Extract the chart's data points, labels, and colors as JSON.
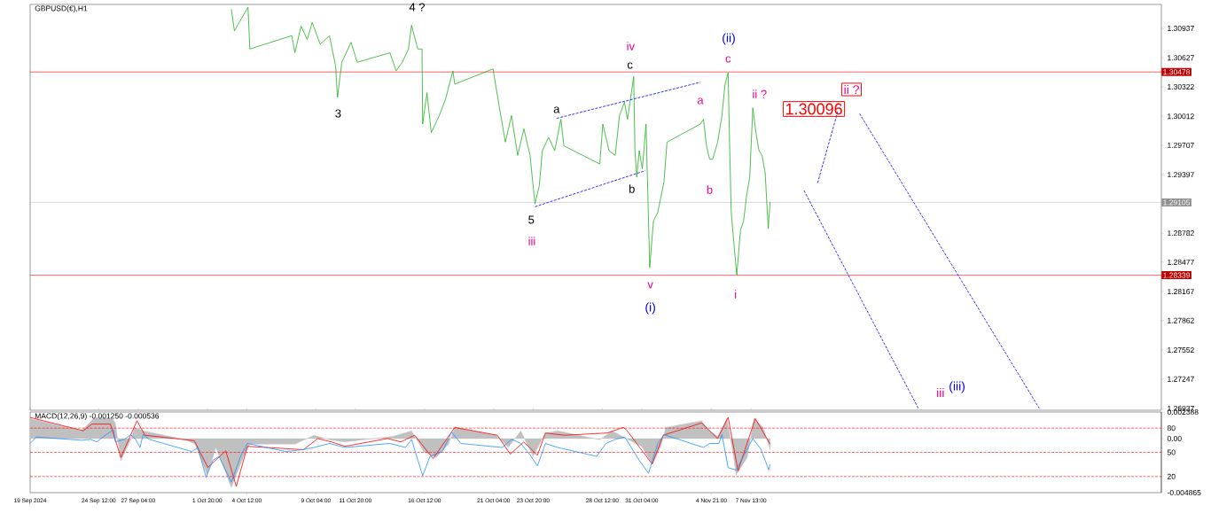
{
  "chart_data": [
    {
      "type": "line",
      "title": "GBPUSD(€),H1",
      "xlim": [
        "2024-09-19T21:00",
        "2024-12-05T06:00"
      ],
      "ylim": [
        1.26918,
        1.31189
      ],
      "xticks": [
        {
          "value": "2024-09-19T21:00",
          "label": null
        },
        {
          "value": "2024-09-24T12:00",
          "label": null
        },
        {
          "value": "2024-09-27T04:00",
          "label": null
        },
        {
          "value": "2024-10-01T20:00",
          "label": null
        },
        {
          "value": "2024-10-04T12:00",
          "label": null
        },
        {
          "value": "2024-10-09T04:00",
          "label": null
        },
        {
          "value": "2024-10-11T20:00",
          "label": null
        },
        {
          "value": "2024-10-16T12:00",
          "label": null
        },
        {
          "value": "2024-10-21T04:00",
          "label": null
        },
        {
          "value": "2024-10-23T20:00",
          "label": null
        },
        {
          "value": "2024-10-28T12:00",
          "label": null
        },
        {
          "value": "2024-10-31T04:00",
          "label": null
        },
        {
          "value": "2024-11-04T21:00",
          "label": null
        },
        {
          "value": "2024-11-07T13:00",
          "label": null
        }
      ],
      "yticks": [
        1.30937,
        1.30627,
        1.30322,
        1.30012,
        1.29707,
        1.29397,
        1.28782,
        1.28477,
        1.28167,
        1.27862,
        1.27552,
        1.27247,
        1.26937
      ],
      "tick_labels": "y",
      "series": [
        {
          "color": "#22b022",
          "line_style": "solid",
          "x": [
            "2024-10-03T11:00",
            "2024-10-03T16:00",
            "2024-10-04T14:00",
            "2024-10-04T17:00",
            "2024-10-07T13:00",
            "2024-10-07T18:00",
            "2024-10-08T04:00",
            "2024-10-08T14:00",
            "2024-10-08T22:00",
            "2024-10-09T11:00",
            "2024-10-10T02:00",
            "2024-10-10T12:00",
            "2024-10-10T15:00",
            "2024-10-10T22:00",
            "2024-10-11T13:00",
            "2024-10-11T23:00",
            "2024-10-14T04:00",
            "2024-10-14T14:00",
            "2024-10-15T00:00",
            "2024-10-15T10:00",
            "2024-10-15T15:00",
            "2024-10-16T01:00",
            "2024-10-16T08:00",
            "2024-10-16T09:00",
            "2024-10-16T16:00",
            "2024-10-16T23:00",
            "2024-10-17T12:00",
            "2024-10-17T22:00",
            "2024-10-18T10:00",
            "2024-10-18T13:00",
            "2024-10-21T03:00",
            "2024-10-21T13:00",
            "2024-10-21T23:00",
            "2024-10-22T09:00",
            "2024-10-22T19:00",
            "2024-10-23T05:00",
            "2024-10-23T15:00",
            "2024-10-23T23:00",
            "2024-10-24T06:00",
            "2024-10-24T11:00",
            "2024-10-24T21:00",
            "2024-10-25T07:00",
            "2024-10-25T17:00",
            "2024-10-25T22:00",
            "2024-10-28T08:00",
            "2024-10-28T13:00",
            "2024-10-28T23:00",
            "2024-10-29T09:00",
            "2024-10-29T16:00",
            "2024-10-30T00:00",
            "2024-10-30T05:00",
            "2024-10-30T15:00",
            "2024-10-30T17:00",
            "2024-10-30T20:00",
            "2024-10-31T00:00",
            "2024-10-31T05:00",
            "2024-10-31T11:00",
            "2024-10-31T15:00",
            "2024-10-31T17:00",
            "2024-10-31T23:00",
            "2024-11-01T06:00",
            "2024-11-01T16:00",
            "2024-11-01T21:00",
            "2024-11-04T03:00",
            "2024-11-04T08:00",
            "2024-11-04T13:00",
            "2024-11-04T18:00",
            "2024-11-04T23:00",
            "2024-11-05T07:00",
            "2024-11-05T14:00",
            "2024-11-05T19:00",
            "2024-11-06T00:00",
            "2024-11-06T02:00",
            "2024-11-06T05:00",
            "2024-11-06T10:00",
            "2024-11-06T14:00",
            "2024-11-06T20:00",
            "2024-11-07T01:00",
            "2024-11-07T06:00",
            "2024-11-07T11:00",
            "2024-11-07T16:00",
            "2024-11-07T21:00",
            "2024-11-08T02:00",
            "2024-11-08T07:00",
            "2024-11-08T12:00",
            "2024-11-08T17:00",
            "2024-11-08T20:00"
          ],
          "values": [
            1.3114,
            1.3091,
            1.3116,
            1.3072,
            1.3086,
            1.3068,
            1.3096,
            1.3082,
            1.31,
            1.3077,
            1.3086,
            1.3054,
            1.3021,
            1.3058,
            1.3079,
            1.3058,
            1.3068,
            1.3049,
            1.3058,
            1.3072,
            1.3097,
            1.3072,
            1.3072,
            1.2993,
            1.3026,
            1.2984,
            1.3002,
            1.3019,
            1.3049,
            1.3035,
            1.3051,
            1.3012,
            1.2974,
            1.3002,
            1.296,
            1.2988,
            1.296,
            1.2909,
            1.2928,
            1.2965,
            1.2979,
            1.2965,
            1.2998,
            1.297,
            1.2951,
            1.2993,
            1.2965,
            1.296,
            1.3002,
            1.3016,
            1.2998,
            1.3043,
            1.2965,
            1.2937,
            1.2965,
            1.2946,
            1.2993,
            1.2891,
            1.2842,
            1.2891,
            1.29,
            1.2932,
            1.2974,
            1.2993,
            1.2998,
            1.297,
            1.2956,
            1.2956,
            1.2974,
            1.3002,
            1.3035,
            1.3047,
            1.2984,
            1.29,
            1.2863,
            1.2834,
            1.2881,
            1.2891,
            1.2918,
            1.2937,
            1.301,
            1.2984,
            1.2965,
            1.296,
            1.2942,
            1.2883,
            1.2911
          ]
        },
        {
          "color": "#0000ff",
          "line_style": "dashed",
          "x": [
            "2024-10-23T23:00",
            "2024-10-31T10:00"
          ],
          "values": [
            1.2906,
            1.2944
          ]
        },
        {
          "color": "#0000ff",
          "line_style": "dashed",
          "x": [
            "2024-10-25T10:00",
            "2024-11-04T03:00"
          ],
          "values": [
            1.2999,
            1.3037
          ]
        },
        {
          "color": "#0000ff",
          "line_style": "dashed",
          "x": [
            "2024-11-12T01:00",
            "2024-11-13T10:00"
          ],
          "values": [
            1.2931,
            1.3007
          ]
        },
        {
          "color": "#0000ff",
          "line_style": "dashed",
          "x": [
            "2024-11-11T03:00",
            "2024-11-18T20:00"
          ],
          "values": [
            1.2923,
            1.2694
          ]
        },
        {
          "color": "#0000ff",
          "line_style": "dashed",
          "x": [
            "2024-11-14T21:00",
            "2024-11-27T00:00"
          ],
          "values": [
            1.3004,
            1.2694
          ]
        }
      ],
      "ref_lines": [
        {
          "axis": "y",
          "value": 1.30478,
          "label": "1.30478",
          "color": "#ff0000",
          "line_style": "solid"
        },
        {
          "axis": "y",
          "value": 1.29105,
          "label": "1.29105",
          "color": "#c0c0c0",
          "line_style": "solid"
        },
        {
          "axis": "y",
          "value": 1.28339,
          "label": "1.28339",
          "color": "#ff0000",
          "line_style": "solid"
        }
      ],
      "annotations": [
        "4 ?",
        "3",
        "5",
        "iii",
        "a",
        "c",
        "iv",
        "b",
        "v",
        "(i)",
        "a",
        "b",
        "c",
        "(ii)",
        "i",
        "ii ?",
        "1.30096",
        "ii ?",
        "iii",
        "(iii)"
      ]
    },
    {
      "type": "line",
      "title": "MACD(12,26,9) -0.001250 -0.000536",
      "xlim": [
        "2024-09-19T21:00",
        "2024-12-05T06:00"
      ],
      "ylim": [
        -0.004865,
        0.002388
      ],
      "y2lim": [
        0,
        100
      ],
      "xticks": [
        {
          "value": "2024-09-19T21:00",
          "label": "19 Sep 2024"
        },
        {
          "value": "2024-09-24T12:00",
          "label": "24 Sep 12:00"
        },
        {
          "value": "2024-09-27T04:00",
          "label": "27 Sep 04:00"
        },
        {
          "value": "2024-10-01T20:00",
          "label": "1 Oct 20:00"
        },
        {
          "value": "2024-10-04T12:00",
          "label": "4 Oct 12:00"
        },
        {
          "value": "2024-10-09T04:00",
          "label": "9 Oct 04:00"
        },
        {
          "value": "2024-10-11T20:00",
          "label": "11 Oct 20:00"
        },
        {
          "value": "2024-10-16T12:00",
          "label": "16 Oct 12:00"
        },
        {
          "value": "2024-10-21T04:00",
          "label": "21 Oct 04:00"
        },
        {
          "value": "2024-10-23T20:00",
          "label": "23 Oct 20:00"
        },
        {
          "value": "2024-10-28T12:00",
          "label": "28 Oct 12:00"
        },
        {
          "value": "2024-10-31T04:00",
          "label": "31 Oct 04:00"
        },
        {
          "value": "2024-11-04T21:00",
          "label": "4 Nov 21:00"
        },
        {
          "value": "2024-11-07T13:00",
          "label": "7 Nov 13:00"
        }
      ],
      "yticks": [
        0.002388,
        {
          "value": 0,
          "label": "0.00"
        },
        -0.004865
      ],
      "y2ticks": [
        80,
        50,
        20
      ],
      "series": [
        {
          "type": "area",
          "color": "#c0c0c0",
          "x": [
            "2024-09-19T21:00",
            "2024-09-23T08:00",
            "2024-09-24T04:00",
            "2024-09-25T10:00",
            "2024-09-25T15:00",
            "2024-09-26T00:00",
            "2024-09-26T16:00",
            "2024-09-26T22:00",
            "2024-09-27T12:00",
            "2024-09-30T09:00",
            "2024-10-01T00:00",
            "2024-10-01T20:00",
            "2024-10-02T10:00",
            "2024-10-03T11:00",
            "2024-10-04T07:00",
            "2024-10-04T17:00",
            "2024-10-07T18:00",
            "2024-10-09T01:00",
            "2024-10-10T02:00",
            "2024-10-11T03:00",
            "2024-10-14T09:00",
            "2024-10-15T15:00",
            "2024-10-16T11:00",
            "2024-10-17T07:00",
            "2024-10-18T03:00",
            "2024-10-18T13:00",
            "2024-10-21T08:00",
            "2024-10-22T04:00",
            "2024-10-23T00:00",
            "2024-10-23T20:00",
            "2024-10-24T16:00",
            "2024-10-25T12:00",
            "2024-10-28T08:00",
            "2024-10-29T04:00",
            "2024-10-30T03:00",
            "2024-10-31T04:00",
            "2024-10-31T21:00",
            "2024-11-01T11:00",
            "2024-11-01T19:00",
            "2024-11-04T05:00",
            "2024-11-04T18:00",
            "2024-11-05T07:00",
            "2024-11-05T22:00",
            "2024-11-06T09:00",
            "2024-11-06T13:00",
            "2024-11-07T07:00",
            "2024-11-07T18:00",
            "2024-11-08T09:00",
            "2024-11-08T20:00"
          ],
          "values": [
            0.0018,
            0.0007,
            0.0018,
            0.0018,
            0.0014,
            -0.002,
            -0.0001,
            0.001,
            0.0007,
            -0.0001,
            -0.0005,
            -0.0033,
            -0.0008,
            -0.0044,
            -0.0016,
            -0.0005,
            -0.0005,
            0.0003,
            -0.0001,
            -0.0003,
            0.0002,
            0.0007,
            -0.0012,
            -0.0017,
            -0.0005,
            0.001,
            0.0003,
            -0.0008,
            0.0007,
            -0.0016,
            0.0005,
            0.0007,
            -0.0001,
            0.0007,
            0,
            -0.0007,
            -0.0023,
            -0.0007,
            0.001,
            0.0016,
            0.0007,
            0.0002,
            0.0018,
            -0.0017,
            -0.0033,
            -0.0017,
            0.0018,
            0.001,
            -0.001
          ]
        },
        {
          "color": "#ff0000",
          "x": [
            "2024-09-19T21:00",
            "2024-09-23T11:00",
            "2024-09-24T01:00",
            "2024-09-25T07:00",
            "2024-09-26T00:00",
            "2024-09-27T02:00",
            "2024-09-27T15:00",
            "2024-09-30T23:00",
            "2024-10-01T21:00",
            "2024-10-03T02:00",
            "2024-10-03T19:00",
            "2024-10-04T13:00",
            "2024-10-08T08:00",
            "2024-10-09T07:00",
            "2024-10-10T05:00",
            "2024-10-11T03:00",
            "2024-10-14T00:00",
            "2024-10-14T22:00",
            "2024-10-15T20:00",
            "2024-10-17T02:00",
            "2024-10-18T13:00",
            "2024-10-21T10:00",
            "2024-10-22T07:00",
            "2024-10-23T05:00",
            "2024-10-24T03:00",
            "2024-10-24T16:00",
            "2024-10-25T22:00",
            "2024-10-28T20:00",
            "2024-10-29T22:00",
            "2024-10-30T03:00",
            "2024-10-31T21:00",
            "2024-11-01T15:00",
            "2024-11-04T05:00",
            "2024-11-05T07:00",
            "2024-11-06T00:00",
            "2024-11-06T16:00",
            "2024-11-07T20:00",
            "2024-11-08T20:00"
          ],
          "values": [
            0.0019,
            0.0007,
            0.0013,
            0.0013,
            -0.0017,
            0.0016,
            0.0003,
            -0.0002,
            -0.0026,
            -0.0011,
            -0.0043,
            -0.0007,
            -0.001,
            0,
            -0.0003,
            -0.0007,
            0,
            -0.0003,
            0.0003,
            -0.0018,
            0.001,
            0.0003,
            -0.0014,
            -0.0003,
            -0.0015,
            0.0005,
            0.0003,
            0.0005,
            0.001,
            0.0008,
            -0.0023,
            0.0003,
            0.0014,
            0,
            0.0019,
            -0.0029,
            0.0018,
            -0.0005
          ]
        },
        {
          "color": "#1e90ff",
          "axis": "y2",
          "x": [
            "2024-09-19T21:00",
            "2024-09-20T07:00",
            "2024-09-23T08:00",
            "2024-09-23T23:00",
            "2024-09-24T09:00",
            "2024-09-25T00:00",
            "2024-09-25T12:00",
            "2024-09-25T15:00",
            "2024-09-26T06:00",
            "2024-09-26T16:00",
            "2024-09-27T00:00",
            "2024-09-27T07:00",
            "2024-09-27T12:00",
            "2024-09-27T22:00",
            "2024-09-30T19:00",
            "2024-10-01T05:00",
            "2024-10-01T18:00",
            "2024-10-02T05:00",
            "2024-10-02T15:00",
            "2024-10-03T11:00",
            "2024-10-04T02:00",
            "2024-10-04T13:00",
            "2024-10-07T03:00",
            "2024-10-08T04:00",
            "2024-10-09T01:00",
            "2024-10-10T02:00",
            "2024-10-11T03:00",
            "2024-10-14T04:00",
            "2024-10-15T05:00",
            "2024-10-15T15:00",
            "2024-10-16T09:00",
            "2024-10-16T21:00",
            "2024-10-17T17:00",
            "2024-10-18T08:00",
            "2024-10-18T23:00",
            "2024-10-21T18:00",
            "2024-10-22T09:00",
            "2024-10-23T00:00",
            "2024-10-23T15:00",
            "2024-10-24T03:00",
            "2024-10-24T16:00",
            "2024-10-25T12:00",
            "2024-10-28T03:00",
            "2024-10-28T18:00",
            "2024-10-29T09:00",
            "2024-10-30T00:00",
            "2024-10-30T03:00",
            "2024-10-30T15:00",
            "2024-10-31T00:00",
            "2024-10-31T15:00",
            "2024-11-01T06:00",
            "2024-11-01T16:00",
            "2024-11-04T08:00",
            "2024-11-04T18:00",
            "2024-11-05T09:00",
            "2024-11-05T14:00",
            "2024-11-06T00:00",
            "2024-11-06T13:00",
            "2024-11-07T07:00",
            "2024-11-07T16:00",
            "2024-11-08T05:00",
            "2024-11-08T18:00",
            "2024-11-08T20:00"
          ],
          "values": [
            61,
            69,
            65,
            66,
            63,
            72,
            78,
            63,
            66,
            72,
            66,
            56,
            72,
            66,
            51,
            56,
            19,
            40,
            45,
            13,
            45,
            61,
            51,
            53,
            56,
            61,
            56,
            61,
            56,
            66,
            21,
            45,
            51,
            75,
            61,
            56,
            66,
            61,
            47,
            33,
            61,
            56,
            45,
            61,
            66,
            69,
            66,
            51,
            40,
            24,
            61,
            72,
            56,
            61,
            61,
            72,
            31,
            28,
            54,
            67,
            54,
            28,
            35
          ]
        }
      ],
      "ref_lines": [
        {
          "axis": "y2",
          "value": 80,
          "color": "#ff0000",
          "line_style": "dashed"
        },
        {
          "axis": "y2",
          "value": 50,
          "color": "#ff0000",
          "line_style": "dashed"
        },
        {
          "axis": "y2",
          "value": 20,
          "color": "#ff0000",
          "line_style": "dashed"
        }
      ]
    }
  ]
}
